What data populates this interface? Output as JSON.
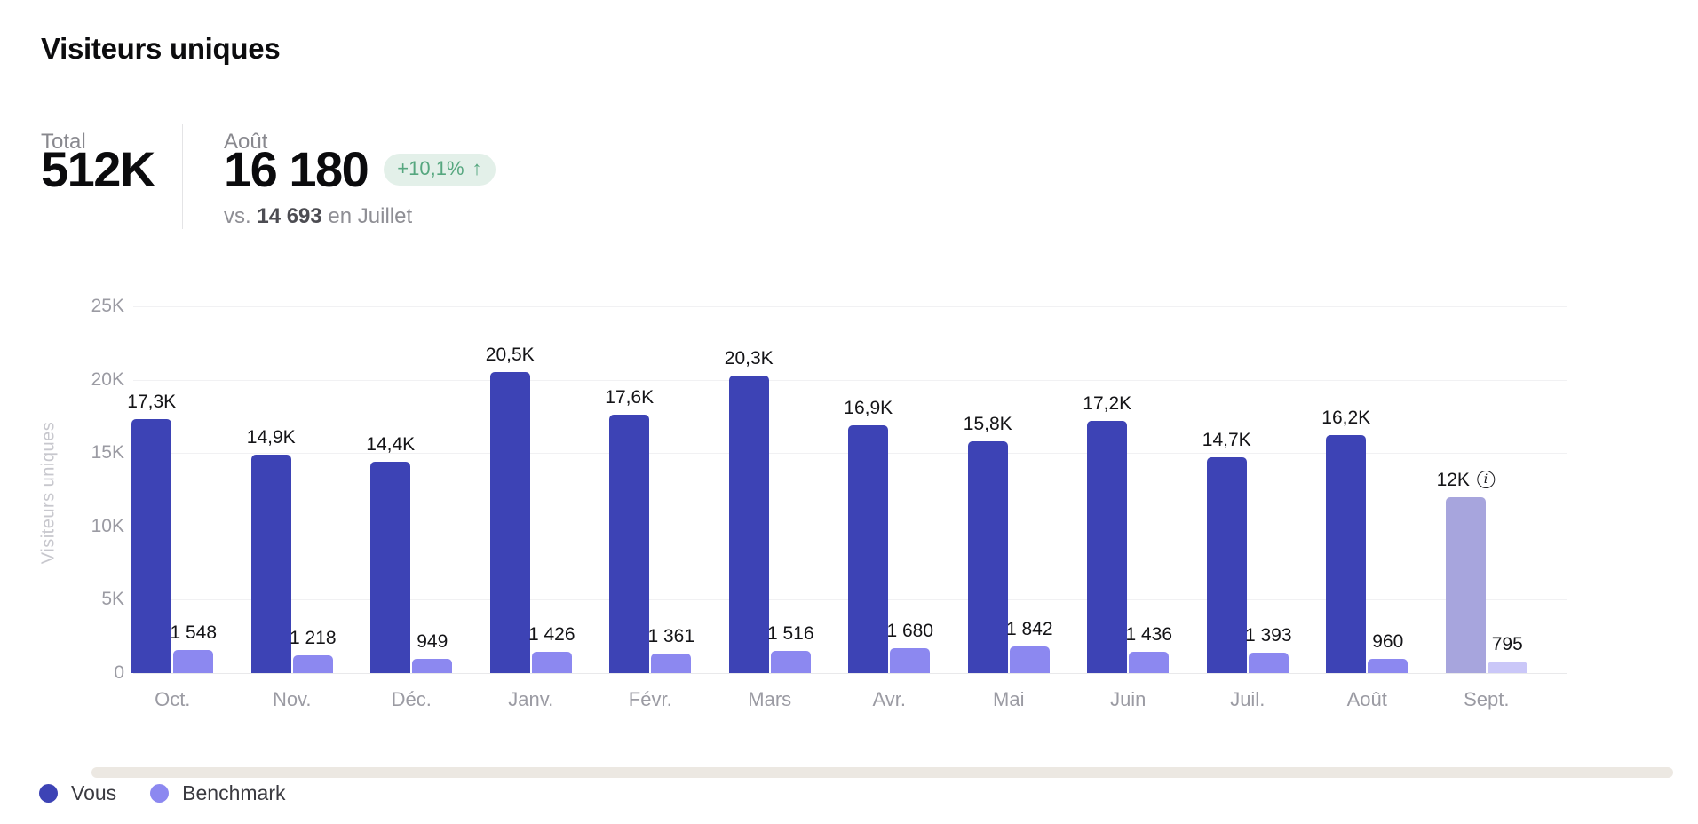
{
  "header": {
    "title": "Visiteurs uniques",
    "total_label": "Total",
    "total_value": "512K",
    "month_label": "Août",
    "month_value": "16 180",
    "delta_badge": "+10,1%",
    "delta_arrow": "↑",
    "comparison_prefix": "vs.",
    "comparison_value": "14 693",
    "comparison_suffix": "en Juillet"
  },
  "chart_data": {
    "type": "bar",
    "title": "Visiteurs uniques",
    "ylabel": "Visiteurs uniques",
    "xlabel": "",
    "ylim": [
      0,
      25000
    ],
    "ytick_labels": [
      "25K",
      "20K",
      "15K",
      "10K",
      "5K",
      "0"
    ],
    "grid": true,
    "legend_position": "bottom-left",
    "categories": [
      "Oct.",
      "Nov.",
      "Déc.",
      "Janv.",
      "Févr.",
      "Mars",
      "Avr.",
      "Mai",
      "Juin",
      "Juil.",
      "Août",
      "Sept."
    ],
    "series": [
      {
        "name": "Vous",
        "color": "#3d43b5",
        "forecast_color": "#a7a5dd",
        "values": [
          17300,
          14900,
          14400,
          20500,
          17600,
          20300,
          16900,
          15800,
          17200,
          14700,
          16200,
          12000
        ],
        "labels": [
          "17,3K",
          "14,9K",
          "14,4K",
          "20,5K",
          "17,6K",
          "20,3K",
          "16,9K",
          "15,8K",
          "17,2K",
          "14,7K",
          "16,2K",
          "12K"
        ]
      },
      {
        "name": "Benchmark",
        "color": "#8c88f0",
        "forecast_color": "#cac7f8",
        "values": [
          1548,
          1218,
          949,
          1426,
          1361,
          1516,
          1680,
          1842,
          1436,
          1393,
          960,
          795
        ],
        "labels": [
          "1 548",
          "1 218",
          "949",
          "1 426",
          "1 361",
          "1 516",
          "1 680",
          "1 842",
          "1 436",
          "1 393",
          "960",
          "795"
        ]
      }
    ],
    "forecast_index": 11,
    "info_icon_glyph": "i"
  },
  "legend": {
    "items": [
      {
        "label": "Vous",
        "color": "#3d43b5"
      },
      {
        "label": "Benchmark",
        "color": "#8c88f0"
      }
    ]
  }
}
